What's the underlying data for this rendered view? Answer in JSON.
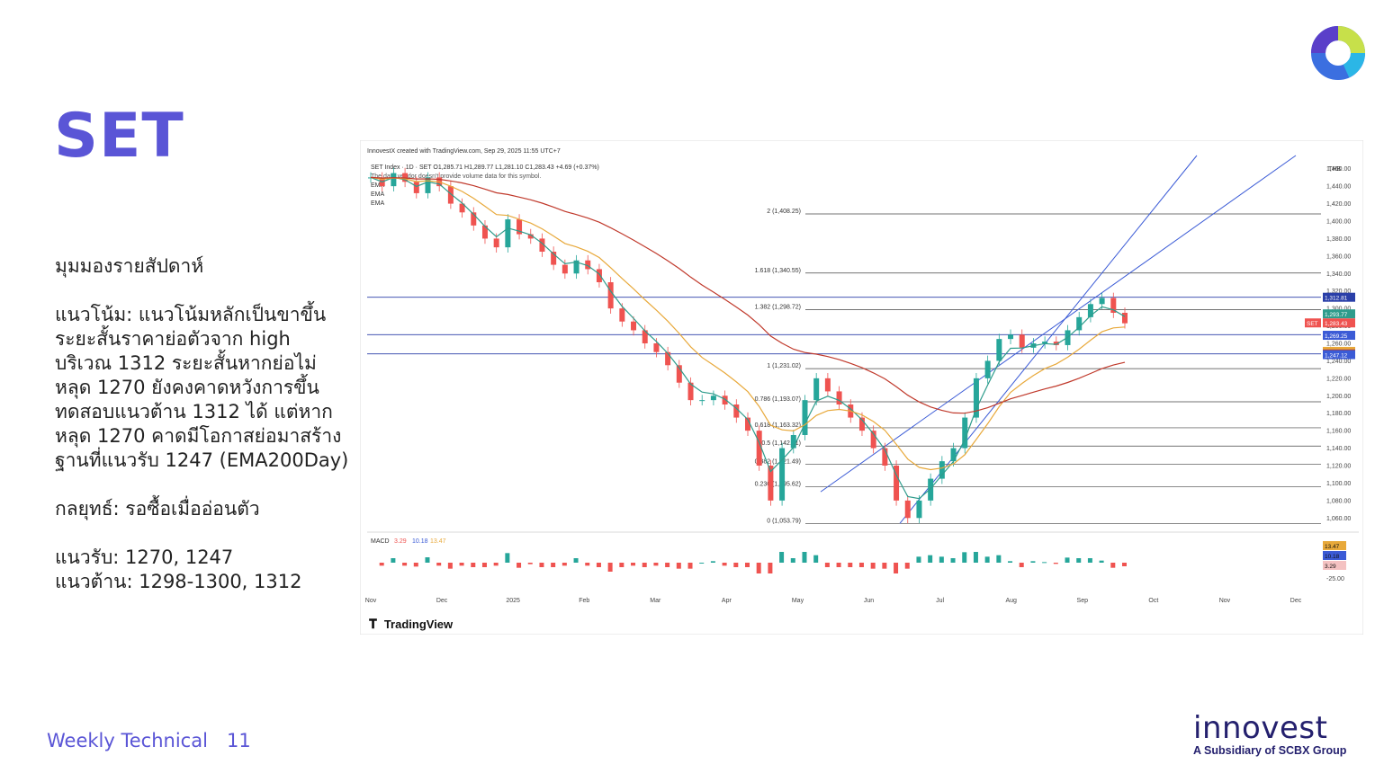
{
  "title": "SET",
  "commentary": {
    "heading": "มุมมองรายสัปดาห์",
    "trend_lines": [
      "แนวโน้ม: แนวโน้มหลักเป็นขาขึ้น",
      "ระยะสั้นราคาย่อตัวจาก high",
      "บริเวณ 1312 ระยะสั้นหากย่อไม่",
      "หลุด 1270 ยังคงคาดหวังการขึ้น",
      "ทดสอบแนวต้าน 1312 ได้ แต่หาก",
      "หลุด 1270 คาดมีโอกาสย่อมาสร้าง",
      "ฐานที่แนวรับ 1247 (EMA200Day)"
    ],
    "strategy": "กลยุทธ์: รอซื้อเมื่ออ่อนตัว",
    "support": "แนวรับ: 1270, 1247",
    "resistance": "แนวต้าน: 1298-1300, 1312"
  },
  "footer": {
    "title": "Weekly Technical",
    "page": "11"
  },
  "brand": {
    "name": "innovest",
    "tagline": "A Subsidiary of SCBX Group"
  },
  "tradingview_logo": "TradingView",
  "colors": {
    "accent": "#5a55d6",
    "up": "#26a69a",
    "down": "#ef5350",
    "ema_fast": "#2e9c8c",
    "ema_mid": "#e8a93b",
    "ema_slow": "#c0392b",
    "channel": "#3b5bd6"
  },
  "chart_data": {
    "type": "candlestick",
    "header": "InnovestX created with TradingView.com, Sep 29, 2025 11:55 UTC+7",
    "symbol_line": "SET Index · 1D · SET  O1,285.71 H1,289.77 L1,281.10 C1,283.43 +4.69 (+0.37%)",
    "notice": "The data vendor doesn't provide volume data for this symbol.",
    "indicators": [
      "EMA",
      "EMA",
      "EMA"
    ],
    "currency": "THB",
    "x_ticks": [
      "Nov",
      "Dec",
      "2025",
      "Feb",
      "Mar",
      "Apr",
      "May",
      "Jun",
      "Jul",
      "Aug",
      "Sep",
      "Oct",
      "Nov",
      "Dec"
    ],
    "y_ticks": [
      1460,
      1440,
      1420,
      1400,
      1380,
      1360,
      1340,
      1320,
      1300,
      1280,
      1260,
      1240,
      1220,
      1200,
      1180,
      1160,
      1140,
      1120,
      1100,
      1080,
      1060
    ],
    "ylim": [
      1050,
      1470
    ],
    "close_path": [
      1450,
      1440,
      1455,
      1445,
      1432,
      1450,
      1440,
      1420,
      1410,
      1395,
      1380,
      1370,
      1402,
      1385,
      1380,
      1365,
      1350,
      1340,
      1355,
      1345,
      1330,
      1300,
      1285,
      1275,
      1260,
      1250,
      1235,
      1215,
      1195,
      1195,
      1200,
      1190,
      1175,
      1160,
      1120,
      1080,
      1140,
      1155,
      1195,
      1220,
      1205,
      1190,
      1175,
      1160,
      1140,
      1120,
      1080,
      1060,
      1080,
      1105,
      1125,
      1140,
      1175,
      1220,
      1240,
      1265,
      1270,
      1255,
      1260,
      1262,
      1258,
      1275,
      1290,
      1305,
      1312,
      1295,
      1283
    ],
    "fib_levels": [
      {
        "label": "2 (1,408.25)",
        "value": 1408.25
      },
      {
        "label": "1.618 (1,340.55)",
        "value": 1340.55
      },
      {
        "label": "1.382 (1,298.72)",
        "value": 1298.72
      },
      {
        "label": "1 (1,231.02)",
        "value": 1231.02
      },
      {
        "label": "0.786 (1,193.07)",
        "value": 1193.07
      },
      {
        "label": "0.618 (1,163.32)",
        "value": 1163.32
      },
      {
        "label": "0.5 (1,142.41)",
        "value": 1142.41
      },
      {
        "label": "0.382 (1,121.49)",
        "value": 1121.49
      },
      {
        "label": "0.236 (1,095.62)",
        "value": 1095.62
      },
      {
        "label": "0 (1,053.79)",
        "value": 1053.79
      }
    ],
    "hlines": [
      1312.81,
      1270,
      1247.92
    ],
    "price_tags": [
      {
        "text": "1,312.81",
        "value": 1312.81,
        "color": "#2a3fa8"
      },
      {
        "text": "1,293.77",
        "value": 1293.77,
        "color": "#2e9c8c"
      },
      {
        "text": "1,283.43",
        "value": 1283.43,
        "color": "#ef5350"
      },
      {
        "text": "1,269.25",
        "value": 1269.25,
        "color": "#3b5bd6"
      },
      {
        "text": "1,250.81",
        "value": 1250.81,
        "color": "#e8a93b"
      },
      {
        "text": "1,247.92",
        "value": 1247.92,
        "color": "#c0392b"
      },
      {
        "text": "1,247.12",
        "value": 1247.12,
        "color": "#3b5bd6"
      }
    ],
    "last_label": "SET",
    "macd": {
      "label": "MACD",
      "values": [
        "3.29",
        "10.18",
        "13.47"
      ],
      "tags": [
        {
          "text": "13.47",
          "color": "#e8a93b"
        },
        {
          "text": "10.18",
          "color": "#3b5bd6"
        },
        {
          "text": "3.29",
          "color": "#f4c2c2"
        }
      ],
      "axis_tick": "-25.00"
    }
  }
}
